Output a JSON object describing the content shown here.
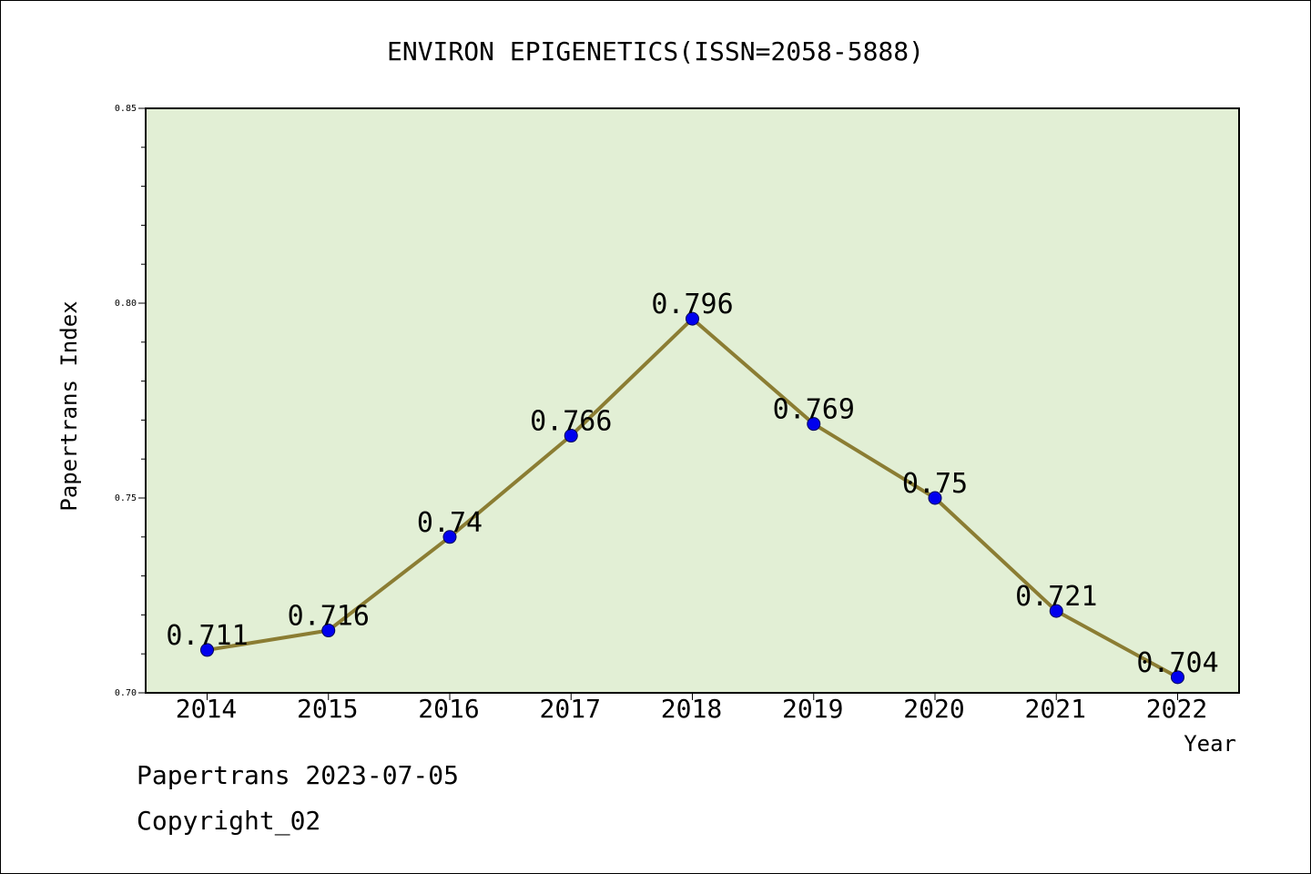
{
  "chart_data": {
    "type": "line",
    "title": "ENVIRON EPIGENETICS(ISSN=2058-5888)",
    "xlabel": "Year",
    "ylabel": "Papertrans Index",
    "categories": [
      "2014",
      "2015",
      "2016",
      "2017",
      "2018",
      "2019",
      "2020",
      "2021",
      "2022"
    ],
    "values": [
      0.711,
      0.716,
      0.74,
      0.766,
      0.796,
      0.769,
      0.75,
      0.721,
      0.704
    ],
    "data_labels": [
      "0.711",
      "0.716",
      "0.74",
      "0.766",
      "0.796",
      "0.769",
      "0.75",
      "0.721",
      "0.704"
    ],
    "ylim": [
      0.7,
      0.85
    ],
    "yticks": [
      "0.70",
      "0.75",
      "0.80",
      "0.85"
    ],
    "grid": false,
    "colors": {
      "plot_background": "#e2efd5",
      "line": "#8b7d33",
      "marker": "#0000ee"
    }
  },
  "footer": {
    "line1": "Papertrans 2023-07-05",
    "line2": "Copyright_02"
  }
}
